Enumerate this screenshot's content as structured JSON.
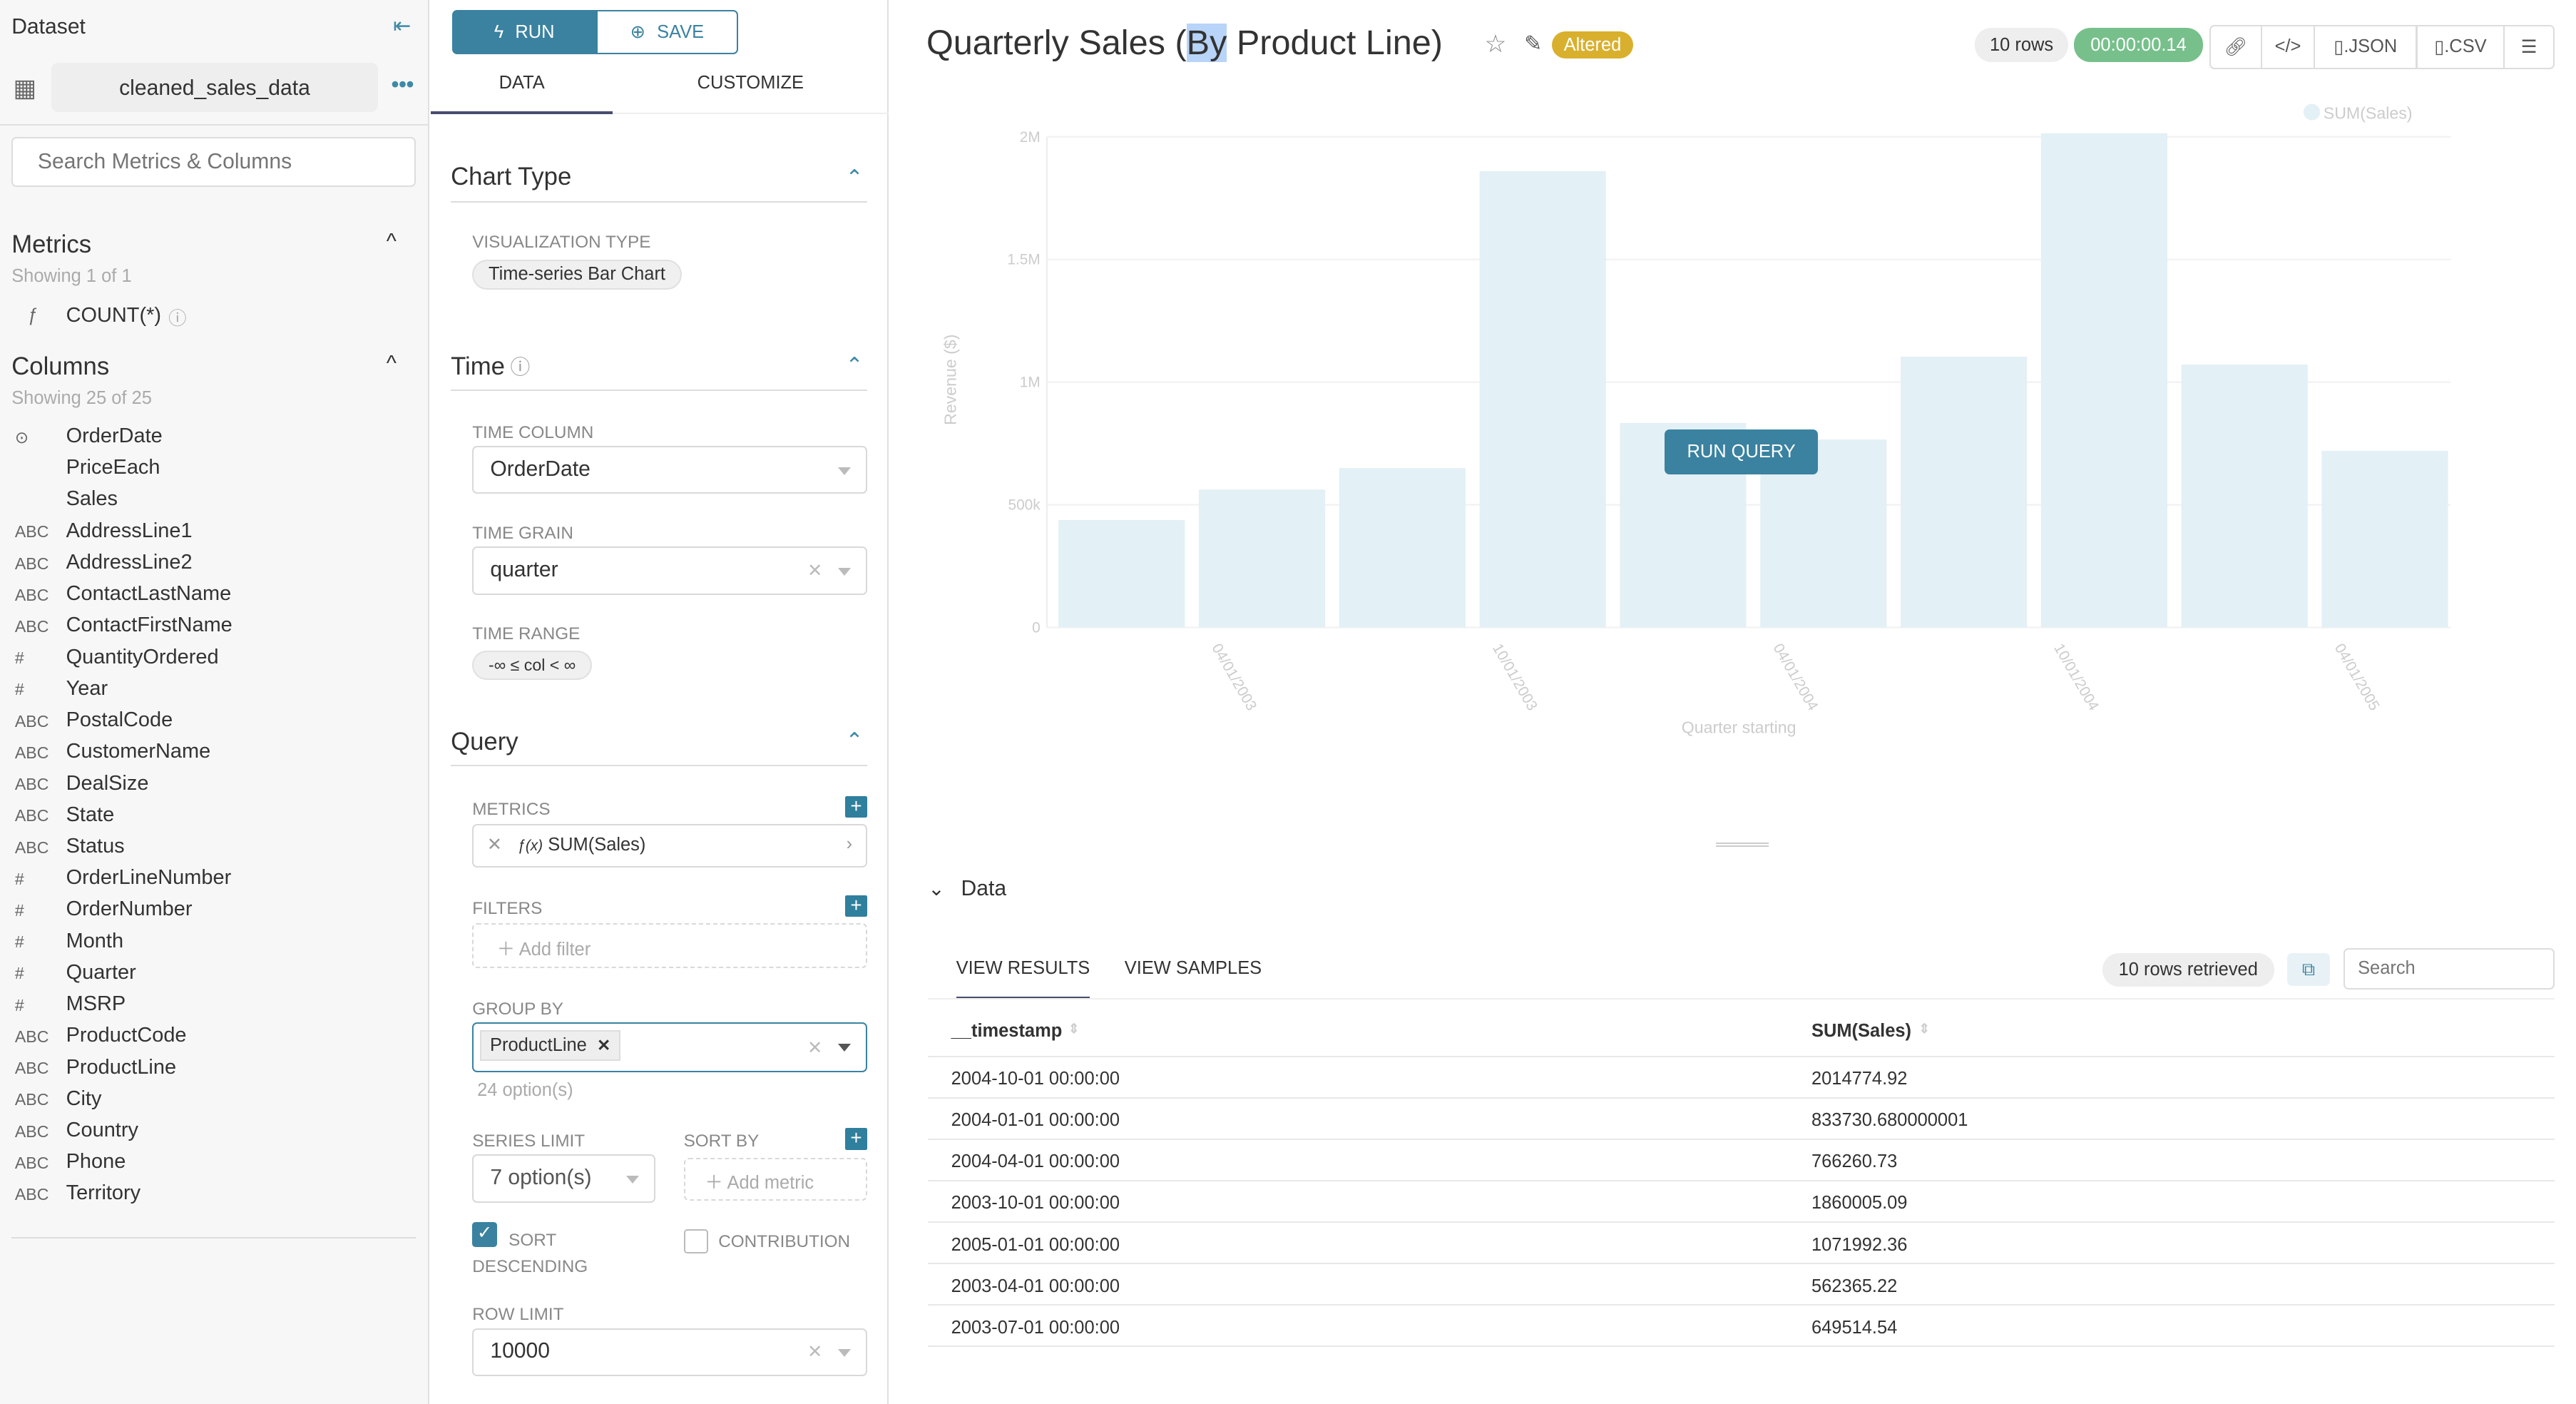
{
  "left": {
    "title": "Dataset",
    "dataset": "cleaned_sales_data",
    "search_placeholder": "Search Metrics & Columns",
    "metrics_title": "Metrics",
    "metrics_showing": "Showing 1 of 1",
    "metric_type": "ƒ",
    "metric": "COUNT(*)",
    "columns_title": "Columns",
    "columns_showing": "Showing 25 of 25",
    "columns": [
      {
        "t": "⊙",
        "n": "OrderDate"
      },
      {
        "t": "",
        "n": "PriceEach"
      },
      {
        "t": "",
        "n": "Sales"
      },
      {
        "t": "ABC",
        "n": "AddressLine1"
      },
      {
        "t": "ABC",
        "n": "AddressLine2"
      },
      {
        "t": "ABC",
        "n": "ContactLastName"
      },
      {
        "t": "ABC",
        "n": "ContactFirstName"
      },
      {
        "t": "#",
        "n": "QuantityOrdered"
      },
      {
        "t": "#",
        "n": "Year"
      },
      {
        "t": "ABC",
        "n": "PostalCode"
      },
      {
        "t": "ABC",
        "n": "CustomerName"
      },
      {
        "t": "ABC",
        "n": "DealSize"
      },
      {
        "t": "ABC",
        "n": "State"
      },
      {
        "t": "ABC",
        "n": "Status"
      },
      {
        "t": "#",
        "n": "OrderLineNumber"
      },
      {
        "t": "#",
        "n": "OrderNumber"
      },
      {
        "t": "#",
        "n": "Month"
      },
      {
        "t": "#",
        "n": "Quarter"
      },
      {
        "t": "#",
        "n": "MSRP"
      },
      {
        "t": "ABC",
        "n": "ProductCode"
      },
      {
        "t": "ABC",
        "n": "ProductLine"
      },
      {
        "t": "ABC",
        "n": "City"
      },
      {
        "t": "ABC",
        "n": "Country"
      },
      {
        "t": "ABC",
        "n": "Phone"
      },
      {
        "t": "ABC",
        "n": "Territory"
      }
    ]
  },
  "ctrl": {
    "run": "RUN",
    "save": "SAVE",
    "tab_data": "DATA",
    "tab_customize": "CUSTOMIZE",
    "chart_type": "Chart Type",
    "viz_label": "VISUALIZATION TYPE",
    "viz": "Time-series Bar Chart",
    "time": "Time",
    "time_col_label": "TIME COLUMN",
    "time_col": "OrderDate",
    "grain_label": "TIME GRAIN",
    "grain": "quarter",
    "range_label": "TIME RANGE",
    "range": "-∞ ≤ col < ∞",
    "query": "Query",
    "metrics_label": "METRICS",
    "metric": "SUM(Sales)",
    "fx": "ƒ(x)",
    "filters_label": "FILTERS",
    "add_filter": "Add filter",
    "groupby_label": "GROUP BY",
    "groupby": "ProductLine",
    "options": "24 option(s)",
    "series_label": "SERIES LIMIT",
    "series": "7 option(s)",
    "sortby_label": "SORT BY",
    "add_metric": "Add metric",
    "sort_desc": "SORT DESCENDING",
    "contribution": "CONTRIBUTION",
    "sort_desc_checked": true,
    "contribution_checked": false,
    "rowlimit_label": "ROW LIMIT",
    "rowlimit": "10000"
  },
  "header": {
    "title_pre": "Quarterly Sales (",
    "title_sel": "By",
    "title_post": " Product Line)",
    "altered": "Altered",
    "rows": "10 rows",
    "time": "00:00:00.14",
    "json": ".JSON",
    "csv": ".CSV"
  },
  "run_query": "RUN QUERY",
  "colors": {
    "accent": "#3a82a0",
    "bar": "#e3f0f5",
    "altered": "#d9b02d",
    "timer": "#77c08b"
  },
  "chart_data": {
    "type": "bar",
    "ylabel": "Revenue ($)",
    "xlabel": "Quarter starting",
    "legend": "SUM(Sales)",
    "legend_position": "top-right",
    "ylim": [
      0,
      2000000
    ],
    "yticks": [
      "0",
      "500k",
      "1M",
      "1.5M",
      "2M"
    ],
    "ytick_values": [
      0,
      500000,
      1000000,
      1500000,
      2000000
    ],
    "categories": [
      "2003-01-01",
      "2003-04-01",
      "2003-07-01",
      "2003-10-01",
      "2004-01-01",
      "2004-04-01",
      "2004-07-01",
      "2004-10-01",
      "2005-01-01",
      "2005-04-01"
    ],
    "values": [
      438000,
      562365.22,
      649514.54,
      1860005.09,
      833730.68,
      766260.73,
      1104000,
      2014774.92,
      1071992.36,
      720000
    ],
    "xticks": [
      "04/01/2003",
      "10/01/2003",
      "04/01/2004",
      "10/01/2004",
      "04/01/2005"
    ],
    "grid": true
  },
  "data": {
    "title": "Data",
    "tab_results": "VIEW RESULTS",
    "tab_samples": "VIEW SAMPLES",
    "retrieved": "10 rows retrieved",
    "search_placeholder": "Search",
    "headers": [
      "__timestamp",
      "SUM(Sales)"
    ],
    "rows": [
      [
        "2004-10-01 00:00:00",
        "2014774.92"
      ],
      [
        "2004-01-01 00:00:00",
        "833730.680000001"
      ],
      [
        "2004-04-01 00:00:00",
        "766260.73"
      ],
      [
        "2003-10-01 00:00:00",
        "1860005.09"
      ],
      [
        "2005-01-01 00:00:00",
        "1071992.36"
      ],
      [
        "2003-04-01 00:00:00",
        "562365.22"
      ],
      [
        "2003-07-01 00:00:00",
        "649514.54"
      ]
    ]
  }
}
